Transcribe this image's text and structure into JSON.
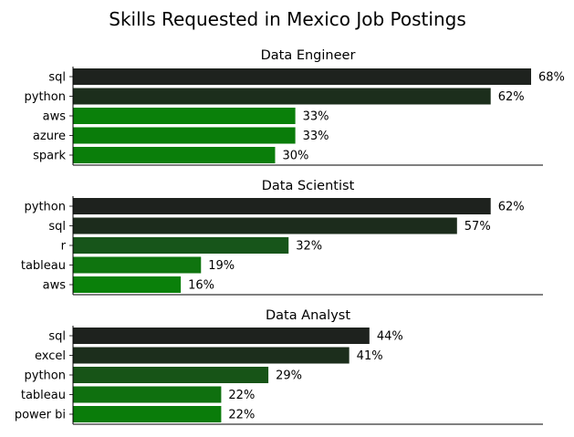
{
  "title": "Skills Requested in Mexico Job Postings",
  "chart_data": [
    {
      "type": "bar",
      "orientation": "horizontal",
      "title": "Data Engineer",
      "categories": [
        "sql",
        "python",
        "aws",
        "azure",
        "spark"
      ],
      "values": [
        68,
        62,
        33,
        33,
        30
      ],
      "value_labels": [
        "68%",
        "62%",
        "33%",
        "33%",
        "30%"
      ],
      "colors": [
        "#1e221e",
        "#1c2e1c",
        "#0a800a",
        "#0a7c0a",
        "#0a7e0a"
      ],
      "xlim": [
        0,
        68
      ],
      "xaxis_visible": false,
      "grid": false
    },
    {
      "type": "bar",
      "orientation": "horizontal",
      "title": "Data Scientist",
      "categories": [
        "python",
        "sql",
        "r",
        "tableau",
        "aws"
      ],
      "values": [
        62,
        57,
        32,
        19,
        16
      ],
      "value_labels": [
        "62%",
        "57%",
        "32%",
        "19%",
        "16%"
      ],
      "colors": [
        "#1e221e",
        "#1c2c1c",
        "#17551a",
        "#0f740f",
        "#0a800a"
      ],
      "xlim": [
        0,
        68
      ],
      "xaxis_visible": false,
      "grid": false
    },
    {
      "type": "bar",
      "orientation": "horizontal",
      "title": "Data Analyst",
      "categories": [
        "sql",
        "excel",
        "python",
        "tableau",
        "power bi"
      ],
      "values": [
        44,
        41,
        29,
        22,
        22
      ],
      "value_labels": [
        "44%",
        "41%",
        "29%",
        "22%",
        "22%"
      ],
      "colors": [
        "#1e221e",
        "#1c2e1c",
        "#175417",
        "#0f700f",
        "#0a7c0a"
      ],
      "xlim": [
        0,
        68
      ],
      "xaxis_visible": false,
      "grid": false
    }
  ]
}
